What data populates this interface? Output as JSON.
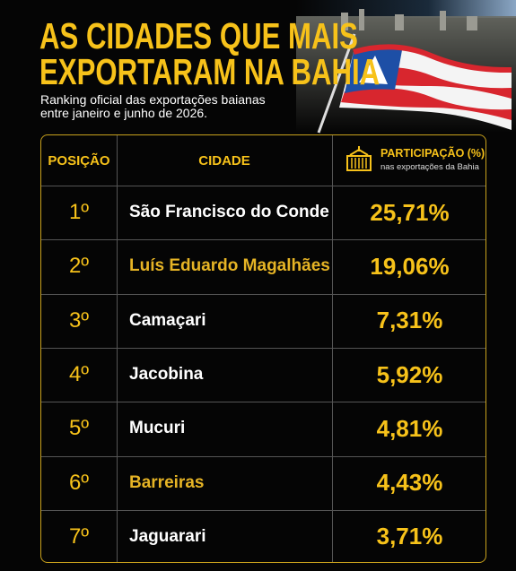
{
  "header": {
    "title": [
      "AS CIDADES QUE MAIS",
      "EXPORTARAM NA BAHIA"
    ],
    "subtitle": [
      "Ranking oficial das exportações baianas",
      "entre janeiro e junho de 2026."
    ]
  },
  "table": {
    "columns": [
      "POSIÇÃO",
      "CIDADE",
      "PARTICIPAÇÃO (%)"
    ],
    "column_note": "nas exportações da Bahia",
    "rows": [
      [
        "1º",
        "São Francisco do Conde",
        "25,71%"
      ],
      [
        "2º",
        "Luís Eduardo Magalhães",
        "19,06%"
      ],
      [
        "3º",
        "Camaçari",
        "7,31%"
      ],
      [
        "4º",
        "Jacobina",
        "5,92%"
      ],
      [
        "5º",
        "Mucuri",
        "4,81%"
      ],
      [
        "6º",
        "Barreiras",
        "4,43%"
      ],
      [
        "7º",
        "Jaguarari",
        "3,71%"
      ]
    ]
  }
}
